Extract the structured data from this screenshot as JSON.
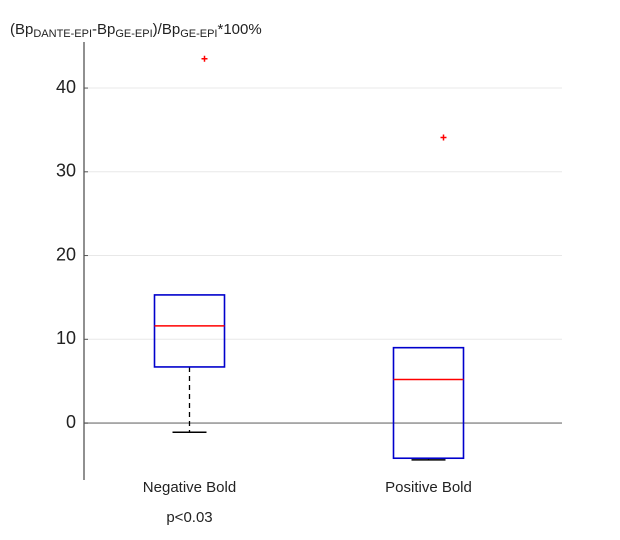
{
  "chart_data": {
    "type": "box",
    "title_segments": [
      "(Bp",
      "DANTE-EPI",
      "-Bp",
      "GE-EPI",
      ")/Bp",
      "GE-EPI",
      "*100%"
    ],
    "categories": [
      "Negative Bold",
      "Positive Bold"
    ],
    "annotations": [
      "p<0.03",
      null
    ],
    "boxes": [
      {
        "q1": 6.7,
        "median": 11.6,
        "q3": 15.3,
        "whisker_low": -1.1,
        "whisker_high": 15.3,
        "outliers": [
          43.5
        ]
      },
      {
        "q1": -4.2,
        "median": 5.2,
        "q3": 9.0,
        "whisker_low": -4.4,
        "whisker_high": 9.0,
        "outliers": [
          34.1
        ]
      }
    ],
    "box_color": "#0000cc",
    "median_color": "#ff0000",
    "outlier_color": "#ff0000",
    "whisker_color": "#000000",
    "ylim": [
      -6.8,
      45.5
    ],
    "yticks": [
      0,
      10,
      20,
      30,
      40
    ],
    "grid": true
  }
}
